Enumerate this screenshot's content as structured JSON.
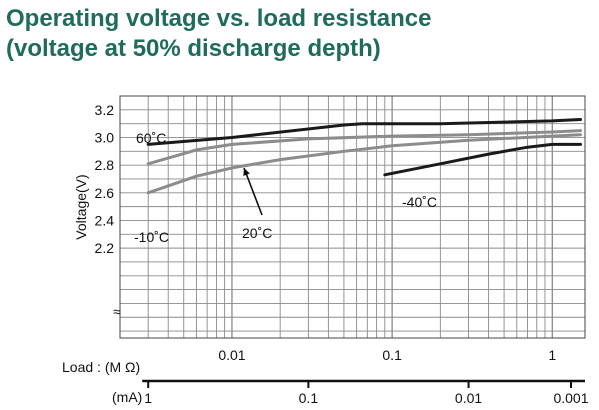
{
  "title_line1": "Operating voltage vs. load resistance",
  "title_line2": "(voltage at 50% discharge depth)",
  "chart_data": {
    "type": "line",
    "xscale": "log",
    "xlim": [
      0.002,
      1.6
    ],
    "ylim": [
      1.55,
      3.3
    ],
    "ylabel": "Voltage(V)",
    "y_ticks": [
      "3.2",
      "3.0",
      "2.8",
      "2.6",
      "2.4",
      "2.2"
    ],
    "y_tick_values": [
      3.2,
      3.0,
      2.8,
      2.6,
      2.4,
      2.2
    ],
    "axis_break_mark": "≈",
    "x_axis_load": {
      "label": "Load : (M Ω)",
      "ticks": [
        "0.01",
        "0.1",
        "1"
      ],
      "tick_values": [
        0.01,
        0.1,
        1
      ]
    },
    "x_axis_current": {
      "label": "(mA)",
      "ticks": [
        "1",
        "0.1",
        "0.01",
        "0.001"
      ],
      "tick_values_mohm": [
        0.003,
        0.03,
        0.3,
        3
      ]
    },
    "series": [
      {
        "name": "60°C",
        "color": "#1a1a1a",
        "x": [
          0.003,
          0.01,
          0.05,
          0.065,
          0.2,
          1.0,
          1.5
        ],
        "y": [
          2.95,
          3.0,
          3.09,
          3.1,
          3.1,
          3.12,
          3.13
        ]
      },
      {
        "name": "20°C",
        "color": "#8c8c8c",
        "x": [
          0.003,
          0.006,
          0.01,
          0.03,
          0.1,
          0.3,
          1.0,
          1.5
        ],
        "y": [
          2.81,
          2.91,
          2.95,
          2.99,
          3.01,
          3.02,
          3.04,
          3.05
        ]
      },
      {
        "name": "-10°C",
        "color": "#8c8c8c",
        "x": [
          0.003,
          0.006,
          0.01,
          0.02,
          0.05,
          0.1,
          0.3,
          1.0,
          1.5
        ],
        "y": [
          2.6,
          2.72,
          2.78,
          2.84,
          2.9,
          2.94,
          2.98,
          3.01,
          3.02
        ]
      },
      {
        "name": "-40°C",
        "color": "#1a1a1a",
        "x": [
          0.09,
          0.2,
          0.4,
          0.7,
          1.0,
          1.5
        ],
        "y": [
          2.73,
          2.81,
          2.88,
          2.93,
          2.95,
          2.95
        ]
      }
    ],
    "annotations": [
      {
        "text": "60˚C",
        "series": "60°C"
      },
      {
        "text": "20˚C",
        "series": "20°C"
      },
      {
        "text": "-10˚C",
        "series": "-10°C"
      },
      {
        "text": "-40˚C",
        "series": "-40°C"
      }
    ]
  }
}
